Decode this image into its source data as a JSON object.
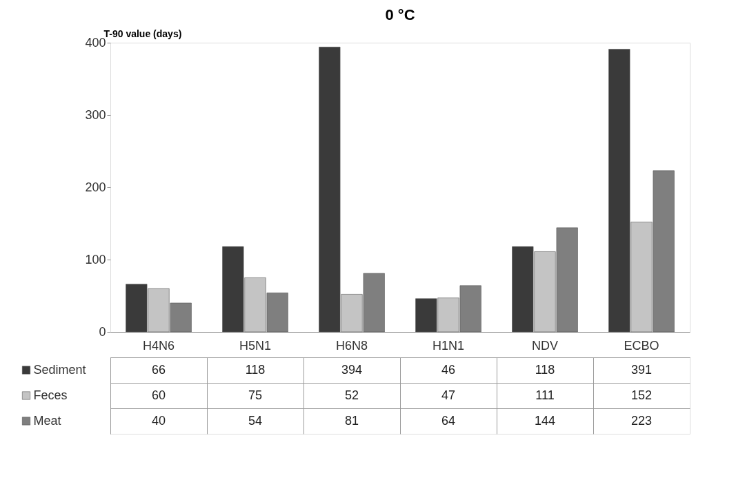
{
  "chart_data": {
    "type": "bar",
    "title": "0 °C",
    "ylabel": "T-90 value (days)",
    "categories": [
      "H4N6",
      "H5N1",
      "H6N8",
      "H1N1",
      "NDV",
      "ECBO"
    ],
    "series": [
      {
        "name": "Sediment",
        "color": "#3a3a3a",
        "values": [
          66,
          118,
          394,
          46,
          118,
          391
        ]
      },
      {
        "name": "Feces",
        "color": "#c4c4c4",
        "values": [
          60,
          75,
          52,
          47,
          111,
          152
        ]
      },
      {
        "name": "Meat",
        "color": "#7f7f7f",
        "values": [
          40,
          54,
          81,
          64,
          144,
          223
        ]
      }
    ],
    "ylim": [
      0,
      400
    ],
    "yticks": [
      0,
      100,
      200,
      300,
      400
    ],
    "legend": "bottom",
    "data_labels": true
  }
}
